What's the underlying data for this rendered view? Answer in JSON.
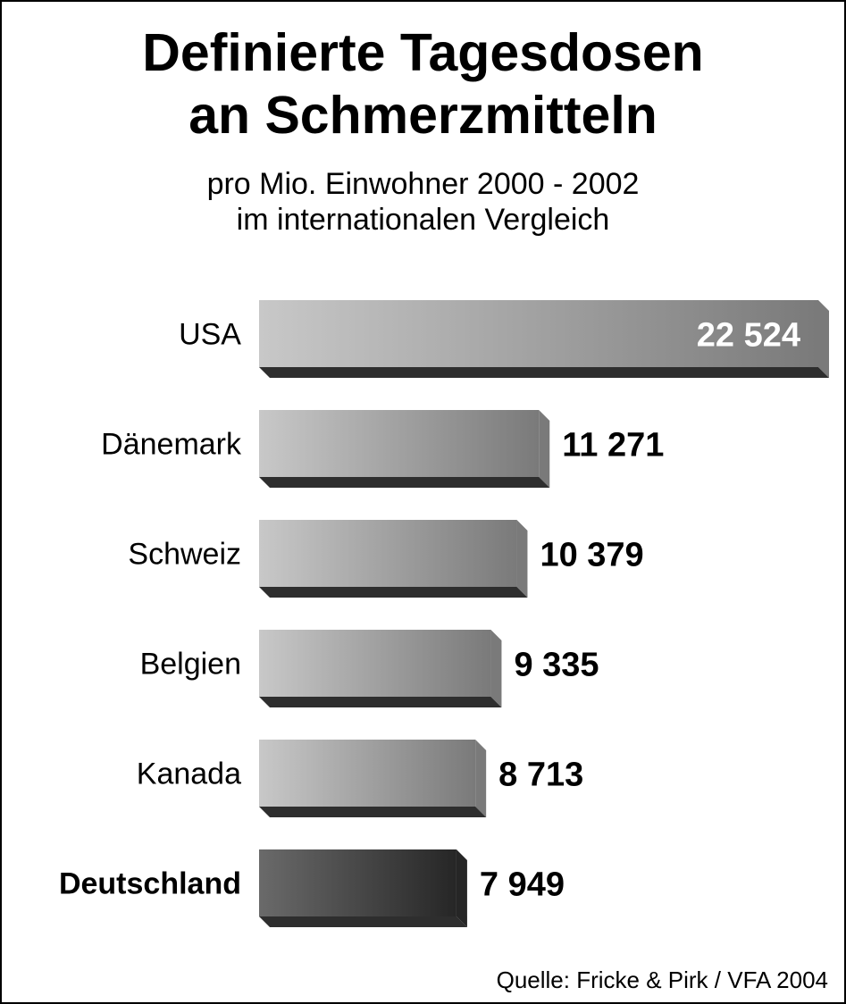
{
  "chart_data": {
    "type": "bar",
    "orientation": "horizontal",
    "title_lines": [
      "Definierte Tagesdosen",
      "an Schmerzmitteln"
    ],
    "subtitle_lines": [
      "pro Mio. Einwohner 2000 - 2002",
      "im internationalen Vergleich"
    ],
    "categories": [
      "USA",
      "Dänemark",
      "Schweiz",
      "Belgien",
      "Kanada",
      "Deutschland"
    ],
    "values": [
      22524,
      11271,
      10379,
      9335,
      8713,
      7949
    ],
    "value_labels": [
      "22 524",
      "11 271",
      "10 379",
      "9 335",
      "8 713",
      "7 949"
    ],
    "highlight": "Deutschland",
    "xlim": [
      0,
      22524
    ],
    "grid": false,
    "legend": "none",
    "colors": {
      "bar_light": "#c8c8c8",
      "bar_mid": "#7a7a7a",
      "bar_shadow": "#2e2e2e",
      "highlight_light": "#6a6a6a",
      "highlight_dark": "#262626"
    },
    "source": "Quelle: Fricke & Pirk / VFA 2004"
  }
}
